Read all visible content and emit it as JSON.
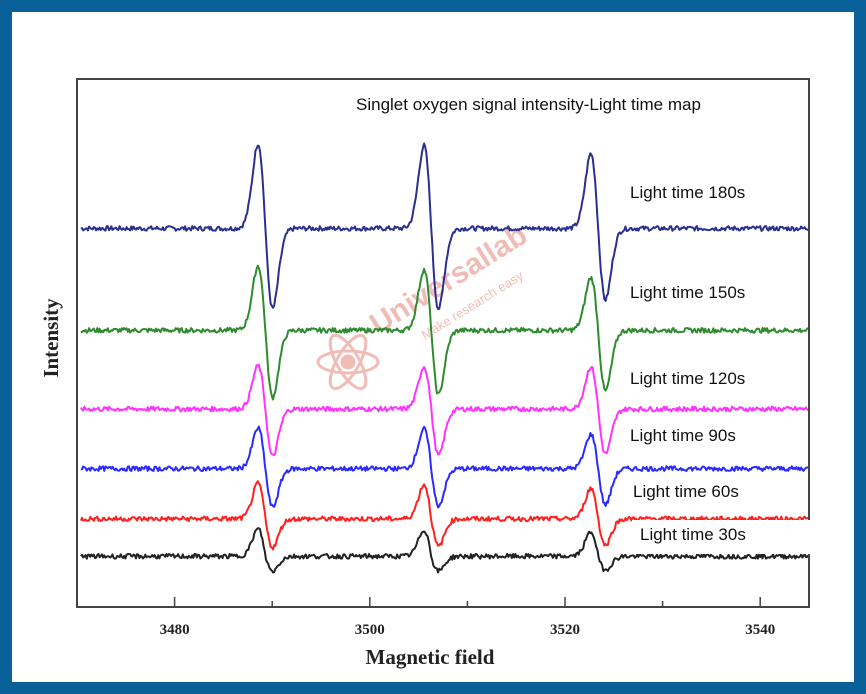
{
  "colors": {
    "border": "#0a6199",
    "axis": "#444444"
  },
  "chart_data": {
    "type": "line",
    "title": "Singlet oxygen signal intensity-Light time map",
    "xlabel": "Magnetic field",
    "ylabel": "Intensity",
    "xlim": [
      3470,
      3545
    ],
    "ylim": [
      0,
      100
    ],
    "xticks": [
      3480,
      3500,
      3520,
      3540
    ],
    "xtick_labels": [
      "3480",
      "3500",
      "3520",
      "3540"
    ],
    "minor_xticks": [
      3490,
      3510,
      3530
    ],
    "grid": false,
    "peak_centers": [
      3489.3,
      3506.3,
      3523.4
    ],
    "peak_width": 0.75,
    "series": [
      {
        "name": "Light time 180s",
        "color": "#2b2f8f",
        "baseline": 71.7,
        "pos": [
          16.1,
          15.7,
          14.2
        ],
        "neg": [
          15.2,
          15.2,
          13.5
        ]
      },
      {
        "name": "Light time 150s",
        "color": "#2e8b2e",
        "baseline": 52.4,
        "pos": [
          12.2,
          11.5,
          10.0
        ],
        "neg": [
          12.7,
          12.2,
          11.5
        ]
      },
      {
        "name": "Light time 120s",
        "color": "#ff33ff",
        "baseline": 37.5,
        "pos": [
          8.2,
          8.0,
          8.0
        ],
        "neg": [
          9.0,
          8.8,
          8.5
        ]
      },
      {
        "name": "Light time 90s",
        "color": "#2a2aff",
        "baseline": 26.2,
        "pos": [
          7.7,
          7.5,
          6.5
        ],
        "neg": [
          7.3,
          7.0,
          6.8
        ]
      },
      {
        "name": "Light time 60s",
        "color": "#ff2020",
        "baseline": 16.7,
        "pos": [
          6.7,
          6.5,
          5.8
        ],
        "neg": [
          5.4,
          5.2,
          5.0
        ]
      },
      {
        "name": "Light time 30s",
        "color": "#222222",
        "baseline": 9.6,
        "pos": [
          5.2,
          5.0,
          4.6
        ],
        "neg": [
          2.8,
          2.8,
          2.6
        ]
      }
    ]
  },
  "watermark": {
    "brand": "Universallab",
    "tagline": "Make research easy"
  }
}
